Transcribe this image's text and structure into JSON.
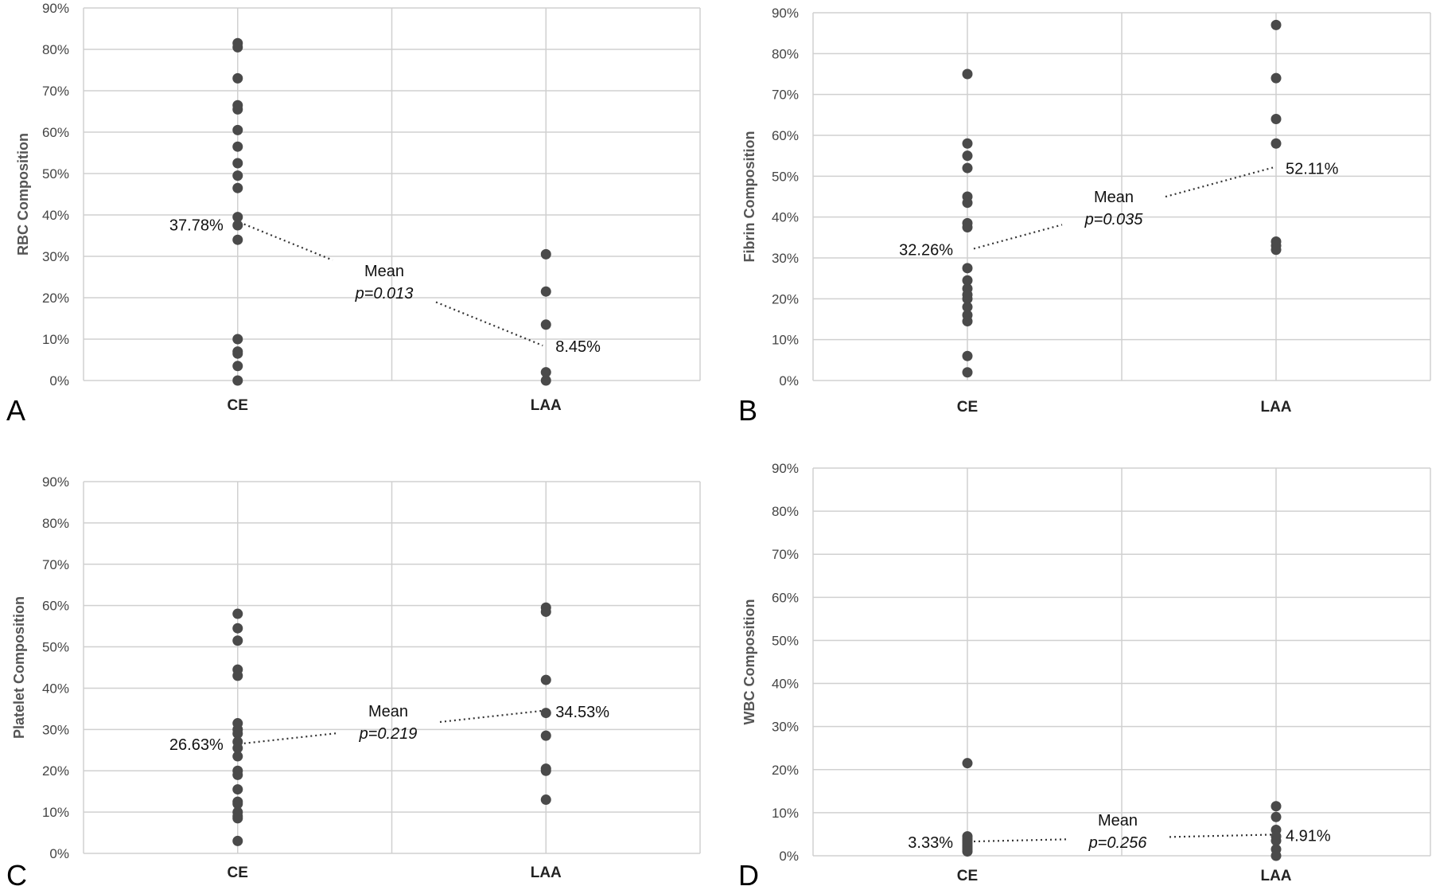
{
  "chart_data": [
    {
      "type": "scatter",
      "panel_letter": "A",
      "ylabel": "RBC Composition",
      "categories": [
        "CE",
        "LAA"
      ],
      "yticks": [
        "0%",
        "10%",
        "20%",
        "30%",
        "40%",
        "50%",
        "60%",
        "70%",
        "80%",
        "90%"
      ],
      "ylim": [
        0,
        90
      ],
      "grid": true,
      "series": [
        {
          "category": "CE",
          "values": [
            81.5,
            80.5,
            73,
            66.5,
            65.5,
            60.5,
            56.5,
            52.5,
            49.5,
            46.5,
            39.5,
            37.5,
            34,
            10,
            7,
            6.5,
            3.5,
            0
          ]
        },
        {
          "category": "LAA",
          "values": [
            30.5,
            21.5,
            13.5,
            2,
            0
          ]
        }
      ],
      "means": [
        {
          "category": "CE",
          "value": 37.78,
          "label": "37.78%"
        },
        {
          "category": "LAA",
          "value": 8.45,
          "label": "8.45%"
        }
      ],
      "annotation": {
        "mean": "Mean",
        "p": "p=0.013"
      }
    },
    {
      "type": "scatter",
      "panel_letter": "B",
      "ylabel": "Fibrin Composition",
      "categories": [
        "CE",
        "LAA"
      ],
      "yticks": [
        "0%",
        "10%",
        "20%",
        "30%",
        "40%",
        "50%",
        "60%",
        "70%",
        "80%",
        "90%"
      ],
      "ylim": [
        0,
        90
      ],
      "grid": true,
      "series": [
        {
          "category": "CE",
          "values": [
            75,
            58,
            55,
            52,
            45,
            43.5,
            38.5,
            37.5,
            27.5,
            24.5,
            22.5,
            21,
            20,
            18,
            16,
            14.5,
            6,
            2
          ]
        },
        {
          "category": "LAA",
          "values": [
            87,
            74,
            64,
            58,
            34,
            33,
            32
          ]
        }
      ],
      "means": [
        {
          "category": "CE",
          "value": 32.26,
          "label": "32.26%"
        },
        {
          "category": "LAA",
          "value": 52.11,
          "label": "52.11%"
        }
      ],
      "annotation": {
        "mean": "Mean",
        "p": "p=0.035"
      }
    },
    {
      "type": "scatter",
      "panel_letter": "C",
      "ylabel": "Platelet Composition",
      "categories": [
        "CE",
        "LAA"
      ],
      "yticks": [
        "0%",
        "10%",
        "20%",
        "30%",
        "40%",
        "50%",
        "60%",
        "70%",
        "80%",
        "90%"
      ],
      "ylim": [
        0,
        90
      ],
      "grid": true,
      "series": [
        {
          "category": "CE",
          "values": [
            58,
            54.5,
            51.5,
            44.5,
            43,
            31.5,
            30,
            29,
            27,
            25.5,
            23.5,
            20,
            19,
            15.5,
            12.5,
            12,
            10,
            9,
            8.5,
            3
          ]
        },
        {
          "category": "LAA",
          "values": [
            59.5,
            58.5,
            42,
            34,
            28.5,
            20.5,
            20,
            13
          ]
        }
      ],
      "means": [
        {
          "category": "CE",
          "value": 26.63,
          "label": "26.63%"
        },
        {
          "category": "LAA",
          "value": 34.53,
          "label": "34.53%"
        }
      ],
      "annotation": {
        "mean": "Mean",
        "p": "p=0.219"
      }
    },
    {
      "type": "scatter",
      "panel_letter": "D",
      "ylabel": "WBC Composition",
      "categories": [
        "CE",
        "LAA"
      ],
      "yticks": [
        "0%",
        "10%",
        "20%",
        "30%",
        "40%",
        "50%",
        "60%",
        "70%",
        "80%",
        "90%"
      ],
      "ylim": [
        0,
        90
      ],
      "grid": true,
      "series": [
        {
          "category": "CE",
          "values": [
            21.5,
            4.5,
            4,
            3.5,
            3,
            2.5,
            2,
            1.5,
            1
          ]
        },
        {
          "category": "LAA",
          "values": [
            11.5,
            9,
            6,
            4.5,
            3.5,
            1.5,
            0
          ]
        }
      ],
      "means": [
        {
          "category": "CE",
          "value": 3.33,
          "label": "3.33%"
        },
        {
          "category": "LAA",
          "value": 4.91,
          "label": "4.91%"
        }
      ],
      "annotation": {
        "mean": "Mean",
        "p": "p=0.256"
      }
    }
  ]
}
